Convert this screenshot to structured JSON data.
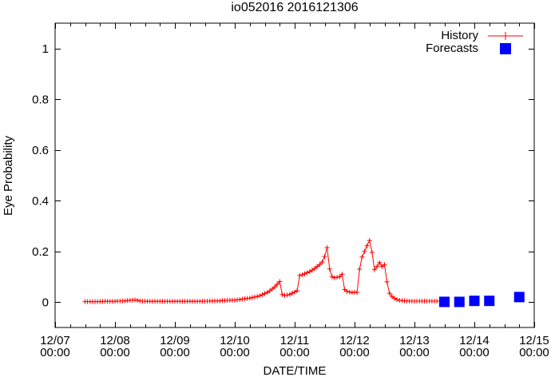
{
  "title": "io052016 2016121306",
  "colors": {
    "history": "#ff0000",
    "forecasts": "#0000ff",
    "axis": "#000000",
    "background": "#ffffff"
  },
  "legend": {
    "history_label": "History",
    "forecasts_label": "Forecasts"
  },
  "chart_data": {
    "type": "line",
    "title": "io052016 2016121306",
    "xlabel": "DATE/TIME",
    "ylabel": "Eye Probability",
    "grid": false,
    "legend_position": "top-right-inside",
    "x_unit": "hours since 12/07 00:00",
    "xlim": [
      0,
      192
    ],
    "ylim": [
      -0.1,
      1.1
    ],
    "x_minor_tick_hours": 6,
    "x_ticks": [
      {
        "t": 0,
        "date": "12/07",
        "time": "00:00"
      },
      {
        "t": 24,
        "date": "12/08",
        "time": "00:00"
      },
      {
        "t": 48,
        "date": "12/09",
        "time": "00:00"
      },
      {
        "t": 72,
        "date": "12/10",
        "time": "00:00"
      },
      {
        "t": 96,
        "date": "12/11",
        "time": "00:00"
      },
      {
        "t": 120,
        "date": "12/12",
        "time": "00:00"
      },
      {
        "t": 144,
        "date": "12/13",
        "time": "00:00"
      },
      {
        "t": 168,
        "date": "12/14",
        "time": "00:00"
      },
      {
        "t": 192,
        "date": "12/15",
        "time": "00:00"
      }
    ],
    "y_ticks": [
      {
        "value": 0,
        "label": "0"
      },
      {
        "value": 0.2,
        "label": "0.2"
      },
      {
        "value": 0.4,
        "label": "0.4"
      },
      {
        "value": 0.6,
        "label": "0.6"
      },
      {
        "value": 0.8,
        "label": "0.8"
      },
      {
        "value": 1,
        "label": "1"
      }
    ],
    "series": [
      {
        "name": "History",
        "type": "line",
        "marker": "plus",
        "color": "#ff0000",
        "points": [
          [
            12,
            0.002
          ],
          [
            13,
            0.002
          ],
          [
            14,
            0.002
          ],
          [
            15,
            0.002
          ],
          [
            16,
            0.002
          ],
          [
            17,
            0.002
          ],
          [
            18,
            0.002
          ],
          [
            19,
            0.003
          ],
          [
            20,
            0.003
          ],
          [
            21,
            0.003
          ],
          [
            22,
            0.003
          ],
          [
            23,
            0.003
          ],
          [
            24,
            0.003
          ],
          [
            25,
            0.004
          ],
          [
            26,
            0.004
          ],
          [
            27,
            0.005
          ],
          [
            28,
            0.005
          ],
          [
            29,
            0.006
          ],
          [
            30,
            0.007
          ],
          [
            31,
            0.008
          ],
          [
            32,
            0.009
          ],
          [
            33,
            0.007
          ],
          [
            34,
            0.005
          ],
          [
            35,
            0.004
          ],
          [
            36,
            0.004
          ],
          [
            37,
            0.003
          ],
          [
            38,
            0.003
          ],
          [
            39,
            0.003
          ],
          [
            40,
            0.003
          ],
          [
            41,
            0.003
          ],
          [
            42,
            0.003
          ],
          [
            43,
            0.003
          ],
          [
            44,
            0.003
          ],
          [
            45,
            0.003
          ],
          [
            46,
            0.003
          ],
          [
            47,
            0.003
          ],
          [
            48,
            0.003
          ],
          [
            49,
            0.003
          ],
          [
            50,
            0.003
          ],
          [
            51,
            0.003
          ],
          [
            52,
            0.003
          ],
          [
            53,
            0.003
          ],
          [
            54,
            0.003
          ],
          [
            55,
            0.003
          ],
          [
            56,
            0.003
          ],
          [
            57,
            0.003
          ],
          [
            58,
            0.003
          ],
          [
            59,
            0.004
          ],
          [
            60,
            0.004
          ],
          [
            61,
            0.004
          ],
          [
            62,
            0.004
          ],
          [
            63,
            0.005
          ],
          [
            64,
            0.005
          ],
          [
            65,
            0.005
          ],
          [
            66,
            0.005
          ],
          [
            67,
            0.006
          ],
          [
            68,
            0.006
          ],
          [
            69,
            0.007
          ],
          [
            70,
            0.007
          ],
          [
            71,
            0.008
          ],
          [
            72,
            0.008
          ],
          [
            73,
            0.009
          ],
          [
            74,
            0.01
          ],
          [
            75,
            0.012
          ],
          [
            76,
            0.013
          ],
          [
            77,
            0.015
          ],
          [
            78,
            0.016
          ],
          [
            79,
            0.018
          ],
          [
            80,
            0.02
          ],
          [
            81,
            0.022
          ],
          [
            82,
            0.025
          ],
          [
            83,
            0.029
          ],
          [
            84,
            0.034
          ],
          [
            85,
            0.038
          ],
          [
            86,
            0.044
          ],
          [
            87,
            0.052
          ],
          [
            88,
            0.06
          ],
          [
            89,
            0.07
          ],
          [
            90,
            0.081
          ],
          [
            91,
            0.03
          ],
          [
            92,
            0.027
          ],
          [
            93,
            0.028
          ],
          [
            94,
            0.03
          ],
          [
            95,
            0.035
          ],
          [
            96,
            0.04
          ],
          [
            97,
            0.045
          ],
          [
            98,
            0.105
          ],
          [
            99,
            0.108
          ],
          [
            100,
            0.112
          ],
          [
            101,
            0.116
          ],
          [
            102,
            0.12
          ],
          [
            103,
            0.126
          ],
          [
            104,
            0.132
          ],
          [
            105,
            0.14
          ],
          [
            106,
            0.148
          ],
          [
            107,
            0.158
          ],
          [
            108,
            0.18
          ],
          [
            109,
            0.215
          ],
          [
            110,
            0.131
          ],
          [
            111,
            0.1
          ],
          [
            112,
            0.096
          ],
          [
            113,
            0.098
          ],
          [
            114,
            0.1
          ],
          [
            115,
            0.11
          ],
          [
            116,
            0.05
          ],
          [
            117,
            0.042
          ],
          [
            118,
            0.04
          ],
          [
            119,
            0.038
          ],
          [
            120,
            0.04
          ],
          [
            121,
            0.038
          ],
          [
            122,
            0.13
          ],
          [
            123,
            0.178
          ],
          [
            124,
            0.2
          ],
          [
            125,
            0.222
          ],
          [
            126,
            0.243
          ],
          [
            127,
            0.196
          ],
          [
            128,
            0.128
          ],
          [
            129,
            0.14
          ],
          [
            130,
            0.156
          ],
          [
            131,
            0.14
          ],
          [
            132,
            0.148
          ],
          [
            133,
            0.08
          ],
          [
            134,
            0.035
          ],
          [
            135,
            0.022
          ],
          [
            136,
            0.015
          ],
          [
            137,
            0.01
          ],
          [
            138,
            0.007
          ],
          [
            139,
            0.006
          ],
          [
            140,
            0.005
          ],
          [
            141,
            0.005
          ],
          [
            142,
            0.004
          ],
          [
            143,
            0.004
          ],
          [
            144,
            0.004
          ],
          [
            145,
            0.004
          ],
          [
            146,
            0.004
          ],
          [
            147,
            0.004
          ],
          [
            148,
            0.004
          ],
          [
            149,
            0.004
          ],
          [
            150,
            0.004
          ],
          [
            151,
            0.004
          ],
          [
            152,
            0.004
          ],
          [
            153,
            0.004
          ]
        ]
      },
      {
        "name": "Forecasts",
        "type": "scatter",
        "marker": "filled-square",
        "marker_size_px": 13,
        "color": "#0000ff",
        "points": [
          [
            156,
            0.001
          ],
          [
            162,
            0.001
          ],
          [
            168,
            0.005
          ],
          [
            174,
            0.005
          ],
          [
            186,
            0.02
          ]
        ]
      }
    ]
  }
}
